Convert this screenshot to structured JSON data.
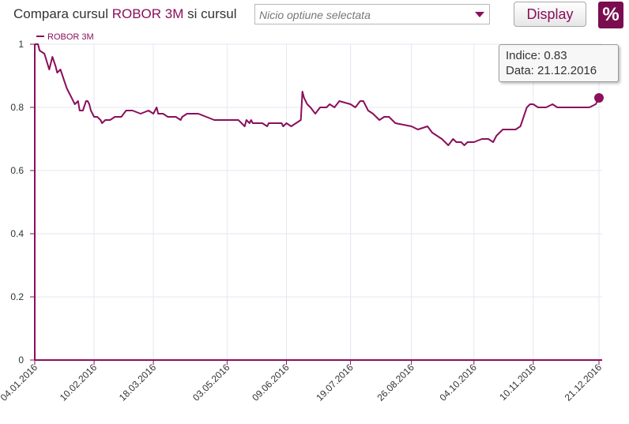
{
  "header": {
    "title_prefix": "Compara cursul ",
    "title_accent": "ROBOR 3M",
    "title_suffix": " si cursul",
    "select_placeholder": "Nicio optiune selectata",
    "display_label": "Display",
    "percent_label": "%"
  },
  "tooltip": {
    "line1": "Indice: 0.83",
    "line2": "Data: 21.12.2016"
  },
  "colors": {
    "series": "#8a0f5c",
    "grid": "#e6e6f2",
    "axis": "#8a0f5c"
  },
  "chart_data": {
    "type": "line",
    "title": "",
    "xlabel": "",
    "ylabel": "",
    "ylim": [
      0,
      1
    ],
    "yticks": [
      "0",
      "0.2",
      "0.4",
      "0.6",
      "0.8",
      "1"
    ],
    "legend_position": "top-left",
    "grid": true,
    "xticks": [
      "04.01.2016",
      "10.02.2016",
      "18.03.2016",
      "03.05.2016",
      "09.06.2016",
      "19.07.2016",
      "26.08.2016",
      "04.10.2016",
      "10.11.2016",
      "21.12.2016"
    ],
    "series": [
      {
        "name": "ROBOR 3M",
        "x": [
          "04.01.2016",
          "06.01.2016",
          "07.01.2016",
          "10.01.2016",
          "13.01.2016",
          "15.01.2016",
          "17.01.2016",
          "18.01.2016",
          "20.01.2016",
          "22.01.2016",
          "24.01.2016",
          "25.01.2016",
          "27.01.2016",
          "29.01.2016",
          "31.01.2016",
          "01.02.2016",
          "03.02.2016",
          "05.02.2016",
          "06.02.2016",
          "07.02.2016",
          "08.02.2016",
          "10.02.2016",
          "12.02.2016",
          "14.02.2016",
          "15.02.2016",
          "17.02.2016",
          "20.02.2016",
          "23.02.2016",
          "25.02.2016",
          "27.02.2016",
          "01.03.2016",
          "05.03.2016",
          "10.03.2016",
          "15.03.2016",
          "18.03.2016",
          "20.03.2016",
          "21.03.2016",
          "24.03.2016",
          "27.03.2016",
          "29.03.2016",
          "01.04.2016",
          "04.04.2016",
          "05.04.2016",
          "08.04.2016",
          "15.04.2016",
          "20.04.2016",
          "25.04.2016",
          "03.05.2016",
          "10.05.2016",
          "12.05.2016",
          "14.05.2016",
          "15.05.2016",
          "17.05.2016",
          "18.05.2016",
          "19.05.2016",
          "25.05.2016",
          "28.05.2016",
          "29.05.2016",
          "04.06.2016",
          "06.06.2016",
          "07.06.2016",
          "09.06.2016",
          "12.06.2016",
          "15.06.2016",
          "18.06.2016",
          "19.06.2016",
          "20.06.2016",
          "22.06.2016",
          "24.06.2016",
          "27.06.2016",
          "30.06.2016",
          "04.07.2016",
          "06.07.2016",
          "09.07.2016",
          "12.07.2016",
          "19.07.2016",
          "22.07.2016",
          "25.07.2016",
          "27.07.2016",
          "30.07.2016",
          "02.08.2016",
          "06.08.2016",
          "09.08.2016",
          "12.08.2016",
          "14.08.2016",
          "16.08.2016",
          "26.08.2016",
          "30.08.2016",
          "05.09.2016",
          "08.09.2016",
          "11.09.2016",
          "14.09.2016",
          "18.09.2016",
          "21.09.2016",
          "23.09.2016",
          "26.09.2016",
          "28.09.2016",
          "30.09.2016",
          "04.10.2016",
          "09.10.2016",
          "13.10.2016",
          "16.10.2016",
          "18.10.2016",
          "22.10.2016",
          "28.10.2016",
          "30.10.2016",
          "02.11.2016",
          "06.11.2016",
          "08.11.2016",
          "10.11.2016",
          "13.11.2016",
          "18.11.2016",
          "22.11.2016",
          "25.11.2016",
          "28.11.2016",
          "02.12.2016",
          "06.12.2016",
          "10.12.2016",
          "15.12.2016",
          "19.12.2016",
          "21.12.2016"
        ],
        "values": [
          1.0,
          1.0,
          0.98,
          0.97,
          0.92,
          0.96,
          0.93,
          0.91,
          0.92,
          0.89,
          0.86,
          0.85,
          0.83,
          0.81,
          0.82,
          0.79,
          0.79,
          0.82,
          0.82,
          0.81,
          0.79,
          0.77,
          0.77,
          0.76,
          0.75,
          0.76,
          0.76,
          0.77,
          0.77,
          0.77,
          0.79,
          0.79,
          0.78,
          0.79,
          0.78,
          0.8,
          0.78,
          0.78,
          0.77,
          0.77,
          0.77,
          0.76,
          0.77,
          0.78,
          0.78,
          0.77,
          0.76,
          0.76,
          0.76,
          0.75,
          0.74,
          0.76,
          0.75,
          0.76,
          0.75,
          0.75,
          0.74,
          0.75,
          0.75,
          0.75,
          0.74,
          0.75,
          0.74,
          0.75,
          0.76,
          0.85,
          0.83,
          0.81,
          0.8,
          0.78,
          0.8,
          0.8,
          0.81,
          0.8,
          0.82,
          0.81,
          0.8,
          0.82,
          0.82,
          0.79,
          0.78,
          0.76,
          0.77,
          0.77,
          0.76,
          0.75,
          0.74,
          0.73,
          0.74,
          0.72,
          0.71,
          0.7,
          0.68,
          0.7,
          0.69,
          0.69,
          0.68,
          0.69,
          0.69,
          0.7,
          0.7,
          0.69,
          0.71,
          0.73,
          0.73,
          0.73,
          0.74,
          0.8,
          0.81,
          0.81,
          0.8,
          0.8,
          0.81,
          0.8,
          0.8,
          0.8,
          0.8,
          0.8,
          0.8,
          0.81,
          0.83
        ]
      }
    ]
  }
}
